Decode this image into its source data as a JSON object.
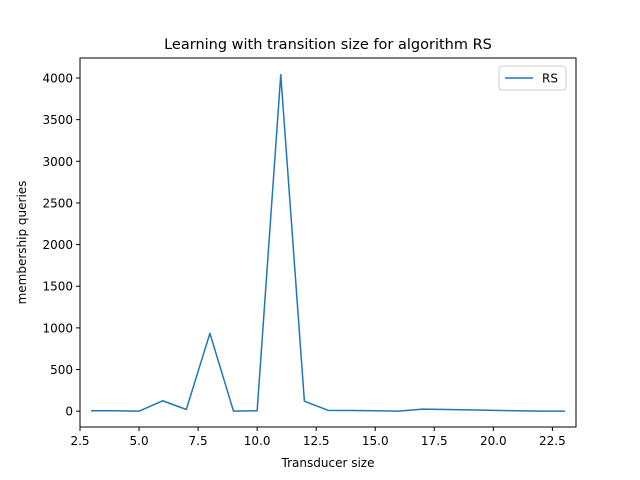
{
  "chart_data": {
    "type": "line",
    "title": "Learning with transition size for algorithm RS",
    "xlabel": "Transducer size",
    "ylabel": "membership queries",
    "xlim": [
      2.5,
      23.5
    ],
    "ylim": [
      -190,
      4240
    ],
    "xticks": [
      2.5,
      5.0,
      7.5,
      10.0,
      12.5,
      15.0,
      17.5,
      20.0,
      22.5
    ],
    "xtick_labels": [
      "2.5",
      "5.0",
      "7.5",
      "10.0",
      "12.5",
      "15.0",
      "17.5",
      "20.0",
      "22.5"
    ],
    "yticks": [
      0,
      500,
      1000,
      1500,
      2000,
      2500,
      3000,
      3500,
      4000
    ],
    "ytick_labels": [
      "0",
      "500",
      "1000",
      "1500",
      "2000",
      "2500",
      "3000",
      "3500",
      "4000"
    ],
    "legend_position": "top-right",
    "grid": false,
    "series": [
      {
        "name": "RS",
        "color": "#1f77b4",
        "x": [
          3,
          4,
          5,
          6,
          7,
          8,
          9,
          10,
          11,
          12,
          13,
          14,
          15,
          16,
          17,
          18,
          19,
          20,
          21,
          22,
          23
        ],
        "y": [
          5,
          5,
          0,
          125,
          20,
          935,
          0,
          5,
          4040,
          120,
          10,
          8,
          5,
          0,
          25,
          20,
          15,
          10,
          5,
          0,
          0
        ]
      }
    ]
  }
}
